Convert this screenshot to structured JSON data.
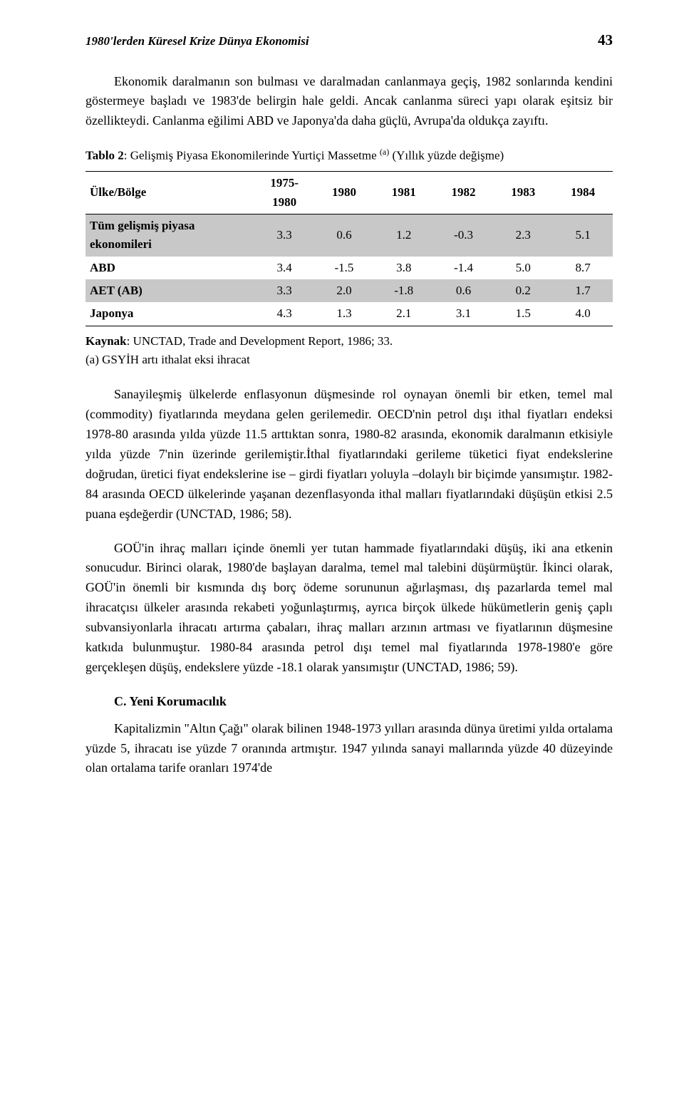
{
  "header": {
    "title": "1980'lerden Küresel Krize Dünya Ekonomisi",
    "page_number": "43"
  },
  "paragraphs": {
    "p1": "Ekonomik daralmanın son bulması ve daralmadan canlanmaya geçiş, 1982 sonlarında kendini göstermeye başladı ve 1983'de belirgin hale geldi. Ancak canlanma süreci yapı olarak eşitsiz bir özellikteydi. Canlanma eğilimi ABD ve Japonya'da daha güçlü, Avrupa'da oldukça zayıftı.",
    "p2": "Sanayileşmiş ülkelerde enflasyonun düşmesinde rol oynayan önemli bir etken, temel mal (commodity) fiyatlarında meydana gelen gerilemedir. OECD'nin petrol dışı ithal fiyatları endeksi 1978-80 arasında yılda yüzde 11.5 arttıktan sonra, 1980-82 arasında, ekonomik daralmanın etkisiyle yılda yüzde 7'nin üzerinde gerilemiştir.İthal fiyatlarındaki gerileme tüketici fiyat endekslerine doğrudan, üretici fiyat endekslerine ise – girdi fiyatları yoluyla –dolaylı bir biçimde yansımıştır. 1982-84 arasında OECD ülkelerinde yaşanan dezenflasyonda ithal malları fiyatlarındaki düşüşün etkisi 2.5 puana eşdeğerdir (UNCTAD, 1986; 58).",
    "p3": "GOÜ'in ihraç malları içinde önemli yer tutan hammade fiyatlarındaki düşüş, iki ana etkenin sonucudur. Birinci olarak, 1980'de başlayan daralma, temel mal talebini düşürmüştür. İkinci olarak, GOÜ'in önemli bir kısmında dış borç ödeme sorununun ağırlaşması, dış pazarlarda temel mal ihracatçısı ülkeler arasında rekabeti yoğunlaştırmış, ayrıca birçok ülkede hükümetlerin geniş çaplı subvansiyonlarla ihracatı artırma çabaları, ihraç malları arzının artması ve fiyatlarının düşmesine katkıda bulunmuştur. 1980-84 arasında petrol dışı temel mal fiyatlarında 1978-1980'e göre gerçekleşen düşüş, endekslere yüzde -18.1 olarak yansımıştır (UNCTAD, 1986; 59).",
    "p4": "Kapitalizmin \"Altın Çağı\" olarak bilinen 1948-1973 yılları arasında dünya üretimi yılda ortalama yüzde 5, ihracatı ise yüzde 7 oranında artmıştır. 1947 yılında sanayi  mallarında  yüzde  40  düzeyinde  olan  ortalama  tarife  oranları  1974'de"
  },
  "table": {
    "caption_prefix": "Tablo 2",
    "caption_text": ": Gelişmiş Piyasa Ekonomilerinde Yurtiçi Massetme ",
    "caption_sup": "(a)",
    "caption_suffix": " (Yıllık yüzde değişme)",
    "columns": [
      "Ülke/Bölge",
      "1975-1980",
      "1980",
      "1981",
      "1982",
      "1983",
      "1984"
    ],
    "rows": [
      {
        "label": "Tüm gelişmiş piyasa ekonomileri",
        "values": [
          "3.3",
          "0.6",
          "1.2",
          "-0.3",
          "2.3",
          "5.1"
        ],
        "shaded": true
      },
      {
        "label": "ABD",
        "values": [
          "3.4",
          "-1.5",
          "3.8",
          "-1.4",
          "5.0",
          "8.7"
        ],
        "shaded": false
      },
      {
        "label": "AET (AB)",
        "values": [
          "3.3",
          "2.0",
          "-1.8",
          "0.6",
          "0.2",
          "1.7"
        ],
        "shaded": true
      },
      {
        "label": "Japonya",
        "values": [
          "4.3",
          "1.3",
          "2.1",
          "3.1",
          "1.5",
          "4.0"
        ],
        "shaded": false
      }
    ],
    "row_header_width_pct": 32,
    "col_width_pct": 11.3,
    "shaded_bg": "#c8c8c8"
  },
  "source_label": "Kaynak",
  "source_text": ": UNCTAD, Trade and Development Report, 1986; 33.",
  "footnote": "(a) GSYİH artı ithalat eksi ihracat",
  "section_heading": "C. Yeni Korumacılık"
}
